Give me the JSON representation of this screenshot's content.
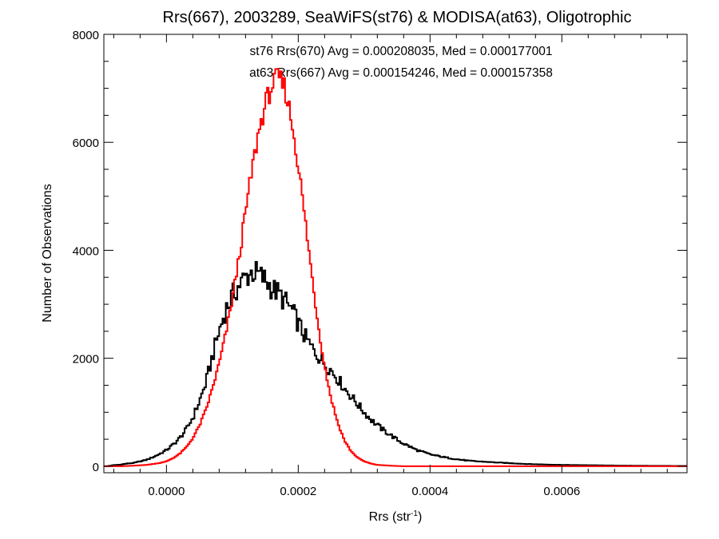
{
  "chart_data": {
    "type": "histogram",
    "title": "Rrs(667), 2003289, SeaWiFS(st76) & MODISA(at63), Oligotrophic",
    "xlabel": {
      "base": "Rrs (str",
      "sup": "-1",
      "close": ")"
    },
    "ylabel": "Number of Observations",
    "xlim": [
      -9.5e-05,
      0.00079
    ],
    "ylim": [
      -120,
      8000
    ],
    "x_ticks": [
      0.0,
      0.0002,
      0.0004,
      0.0006
    ],
    "x_tick_labels": [
      "0.0000",
      "0.0002",
      "0.0004",
      "0.0006"
    ],
    "y_ticks": [
      0,
      2000,
      4000,
      6000,
      8000
    ],
    "y_tick_labels": [
      "0",
      "2000",
      "4000",
      "6000",
      "8000"
    ],
    "grid": false,
    "legend_placement": "top-center",
    "series": [
      {
        "name": "st76",
        "color": "#000000",
        "annotation": "st76 Rrs(670) Avg = 0.000208035, Med = 0.000177001",
        "points": [
          [
            -9e-05,
            0
          ],
          [
            -8e-05,
            20
          ],
          [
            -7e-05,
            30
          ],
          [
            -6e-05,
            50
          ],
          [
            -5e-05,
            60
          ],
          [
            -4e-05,
            90
          ],
          [
            -3e-05,
            120
          ],
          [
            -2e-05,
            170
          ],
          [
            -1e-05,
            230
          ],
          [
            0.0,
            300
          ],
          [
            1e-05,
            400
          ],
          [
            2e-05,
            520
          ],
          [
            3e-05,
            680
          ],
          [
            4e-05,
            900
          ],
          [
            5e-05,
            1200
          ],
          [
            6e-05,
            1550
          ],
          [
            7e-05,
            2050
          ],
          [
            8e-05,
            2500
          ],
          [
            9e-05,
            2900
          ],
          [
            0.0001,
            3150
          ],
          [
            0.00011,
            3350
          ],
          [
            0.00012,
            3500
          ],
          [
            0.00013,
            3600
          ],
          [
            0.00014,
            3550
          ],
          [
            0.00015,
            3450
          ],
          [
            0.00016,
            3300
          ],
          [
            0.00017,
            3200
          ],
          [
            0.00018,
            3050
          ],
          [
            0.00019,
            2900
          ],
          [
            0.0002,
            2650
          ],
          [
            0.00021,
            2400
          ],
          [
            0.00022,
            2200
          ],
          [
            0.00023,
            2050
          ],
          [
            0.00024,
            1900
          ],
          [
            0.00025,
            1780
          ],
          [
            0.00026,
            1620
          ],
          [
            0.00027,
            1450
          ],
          [
            0.00028,
            1300
          ],
          [
            0.00029,
            1150
          ],
          [
            0.0003,
            1000
          ],
          [
            0.00031,
            870
          ],
          [
            0.00032,
            760
          ],
          [
            0.00033,
            660
          ],
          [
            0.00034,
            580
          ],
          [
            0.00035,
            490
          ],
          [
            0.00036,
            420
          ],
          [
            0.00037,
            360
          ],
          [
            0.00038,
            300
          ],
          [
            0.00039,
            260
          ],
          [
            0.0004,
            220
          ],
          [
            0.00042,
            170
          ],
          [
            0.00044,
            130
          ],
          [
            0.00046,
            100
          ],
          [
            0.0005,
            70
          ],
          [
            0.00055,
            40
          ],
          [
            0.0006,
            25
          ],
          [
            0.0007,
            10
          ],
          [
            0.00079,
            5
          ]
        ]
      },
      {
        "name": "at63",
        "color": "#ff0000",
        "annotation": "at63 Rrs(667) Avg = 0.000154246, Med = 0.000157358",
        "points": [
          [
            -9e-05,
            0
          ],
          [
            -7e-05,
            0
          ],
          [
            -5e-05,
            10
          ],
          [
            -3e-05,
            25
          ],
          [
            -1e-05,
            60
          ],
          [
            0.0,
            90
          ],
          [
            1e-05,
            150
          ],
          [
            2e-05,
            230
          ],
          [
            3e-05,
            350
          ],
          [
            4e-05,
            520
          ],
          [
            5e-05,
            750
          ],
          [
            6e-05,
            1050
          ],
          [
            7e-05,
            1450
          ],
          [
            8e-05,
            1900
          ],
          [
            9e-05,
            2450
          ],
          [
            0.0001,
            3100
          ],
          [
            0.00011,
            3850
          ],
          [
            0.00012,
            4700
          ],
          [
            0.00013,
            5500
          ],
          [
            0.00014,
            6200
          ],
          [
            0.00015,
            6700
          ],
          [
            0.00016,
            7050
          ],
          [
            0.00017,
            7200
          ],
          [
            0.00018,
            7000
          ],
          [
            0.00019,
            6400
          ],
          [
            0.0002,
            5600
          ],
          [
            0.00021,
            4600
          ],
          [
            0.00022,
            3600
          ],
          [
            0.00023,
            2650
          ],
          [
            0.00024,
            1850
          ],
          [
            0.00025,
            1250
          ],
          [
            0.00026,
            800
          ],
          [
            0.00027,
            480
          ],
          [
            0.00028,
            280
          ],
          [
            0.00029,
            160
          ],
          [
            0.0003,
            90
          ],
          [
            0.00031,
            50
          ],
          [
            0.00032,
            25
          ],
          [
            0.00034,
            10
          ],
          [
            0.00036,
            0
          ],
          [
            0.0005,
            0
          ],
          [
            0.00079,
            0
          ]
        ]
      }
    ]
  }
}
